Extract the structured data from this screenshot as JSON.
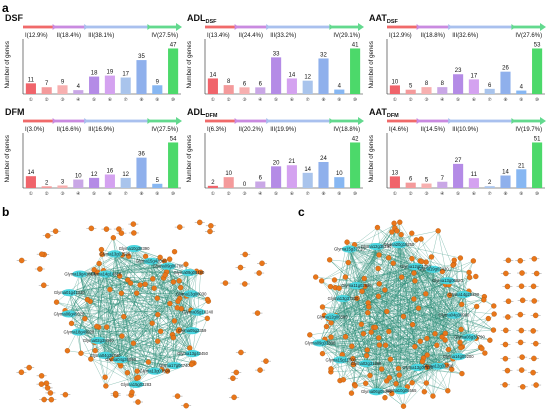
{
  "panels": {
    "a": "a",
    "b": "b",
    "c": "c"
  },
  "colors": [
    "#f0646b",
    "#f49a9b",
    "#f7b0b0",
    "#c9a7e6",
    "#b48be6",
    "#d4a2f0",
    "#a9c4ec",
    "#8fb0ec",
    "#87b7f2",
    "#4cd96a"
  ],
  "arrow_colors": [
    "#f06a6a",
    "#c98ae0",
    "#a9c0ee",
    "#63d98e"
  ],
  "chart_data": [
    {
      "type": "bar",
      "title": "DSF",
      "title_sub": "",
      "stages": [
        "I(12.9%)",
        "II(18.4%)",
        "III(38.1%)",
        "IV(27.5%)"
      ],
      "categories": [
        "①",
        "②",
        "③",
        "④",
        "⑤",
        "⑥",
        "⑦",
        "⑧",
        "⑨",
        "⑩"
      ],
      "values": [
        11,
        7,
        9,
        4,
        18,
        19,
        17,
        35,
        9,
        47
      ],
      "ylabel": "Number of genes"
    },
    {
      "type": "bar",
      "title": "ADL",
      "title_sub": "DSF",
      "stages": [
        "I(13.4%)",
        "II(24.4%)",
        "III(33.2%)",
        "IV(29.1%)"
      ],
      "categories": [
        "①",
        "②",
        "③",
        "④",
        "⑤",
        "⑥",
        "⑦",
        "⑧",
        "⑨",
        "⑩"
      ],
      "values": [
        14,
        8,
        6,
        6,
        33,
        14,
        12,
        32,
        4,
        41
      ],
      "ylabel": "Number of genes"
    },
    {
      "type": "bar",
      "title": "AAT",
      "title_sub": "DSF",
      "stages": [
        "I(12.9%)",
        "II(18.8%)",
        "III(32.6%)",
        "IV(27.6%)"
      ],
      "categories": [
        "①",
        "②",
        "③",
        "④",
        "⑤",
        "⑥",
        "⑦",
        "⑧",
        "⑨",
        "⑩"
      ],
      "values": [
        10,
        5,
        8,
        8,
        23,
        17,
        6,
        26,
        4,
        53
      ],
      "ylabel": "Number of genes"
    },
    {
      "type": "bar",
      "title": "DFM",
      "title_sub": "",
      "stages": [
        "I(3.0%)",
        "II(16.6%)",
        "III(16.9%)",
        "IV(27.5%)"
      ],
      "categories": [
        "①",
        "②",
        "③",
        "④",
        "⑤",
        "⑥",
        "⑦",
        "⑧",
        "⑨",
        "⑩"
      ],
      "values": [
        14,
        2,
        3,
        10,
        12,
        16,
        12,
        36,
        5,
        54
      ],
      "ylabel": "Number of genes"
    },
    {
      "type": "bar",
      "title": "ADL",
      "title_sub": "DFM",
      "stages": [
        "I(6.3%)",
        "II(20.2%)",
        "III(19.9%)",
        "IV(18.8%)"
      ],
      "categories": [
        "①",
        "②",
        "③",
        "④",
        "⑤",
        "⑥",
        "⑦",
        "⑧",
        "⑨",
        "⑩"
      ],
      "values": [
        2,
        10,
        0,
        6,
        20,
        21,
        14,
        24,
        10,
        42
      ],
      "ylabel": "Number of genes"
    },
    {
      "type": "bar",
      "title": "AAT",
      "title_sub": "DFM",
      "stages": [
        "I(4.6%)",
        "II(14.5%)",
        "III(10.9%)",
        "IV(19.7%)"
      ],
      "categories": [
        "①",
        "②",
        "③",
        "④",
        "⑤",
        "⑥",
        "⑦",
        "⑧",
        "⑨",
        "⑩"
      ],
      "values": [
        13,
        6,
        5,
        7,
        27,
        11,
        2,
        14,
        21,
        51
      ],
      "ylabel": "Number of genes"
    }
  ],
  "networks": {
    "b": {
      "node_color": "#e8761a",
      "hub_color": "#49d6e0",
      "edge_color": "#2f8f7a",
      "hubs": [
        "Glyma05g2359",
        "Glyma13g43450",
        "Glyma17g06740",
        "Glyma13g03590",
        "Glyma15g03283",
        "Glyma04g36050",
        "Glyma04g36740",
        "Glyma02g38040",
        "Glyma18g49920",
        "Glyma06g45070",
        "Glyma01g41310",
        "Glyma19g41810",
        "Glyma14g14810",
        "Glyma13g02520",
        "Glyma10g38390",
        "Glyma15g42040",
        "Glyma09g06760",
        "Glyma09g08180",
        "Glyma13g06030",
        "Glyma05g18240"
      ]
    },
    "c": {
      "node_color": "#e8761a",
      "hub_color": "#49d6e0",
      "edge_color": "#2f8f7a",
      "hubs": [
        "Glyma06g36790",
        "Glyma14g09200",
        "Glyma12g32390",
        "Glyma13g07920",
        "Glyma10g06565",
        "Glyma06g05390",
        "Glyma02g31295",
        "Glyma15g11500",
        "Glyma09g33330",
        "Glyma12g06380",
        "Glyma13g37230",
        "Glyma11g02690",
        "Glyma15g37710",
        "Glyma12g35280",
        "Glyma20g19250",
        "Glyma12g01720",
        "Glyma19g02420",
        "Glyma13g06620",
        "Glyma14g25390",
        "Glyma04g36960"
      ]
    }
  }
}
